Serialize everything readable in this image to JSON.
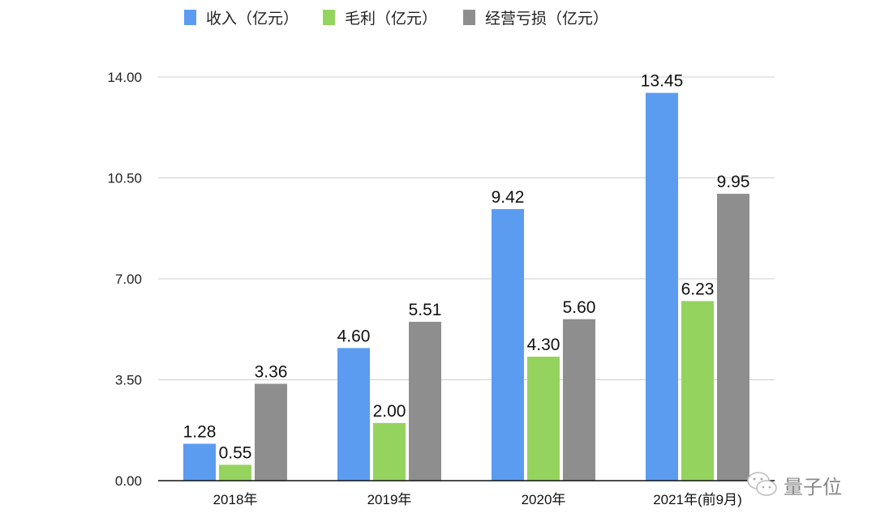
{
  "chart_data": {
    "type": "bar",
    "categories": [
      "2018年",
      "2019年",
      "2020年",
      "2021年(前9月)"
    ],
    "series": [
      {
        "name": "收入（亿元）",
        "color": "#5b9cf0",
        "values": [
          1.28,
          4.6,
          9.42,
          13.45
        ]
      },
      {
        "name": "毛利（亿元）",
        "color": "#95d35f",
        "values": [
          0.55,
          2.0,
          4.3,
          6.23
        ]
      },
      {
        "name": "经营亏损（亿元）",
        "color": "#8e8e8e",
        "values": [
          3.36,
          5.51,
          5.6,
          9.95
        ]
      }
    ],
    "data_labels": [
      [
        "1.28",
        "0.55",
        "3.36"
      ],
      [
        "4.60",
        "2.00",
        "5.51"
      ],
      [
        "9.42",
        "4.30",
        "5.60"
      ],
      [
        "13.45",
        "6.23",
        "9.95"
      ]
    ],
    "yticks": [
      "0.00",
      "3.50",
      "7.00",
      "10.50",
      "14.00"
    ],
    "ytick_values": [
      0,
      3.5,
      7,
      10.5,
      14
    ],
    "ylim": [
      0,
      14
    ],
    "grid": true,
    "legend_position": "top"
  },
  "watermark": {
    "text": "量子位",
    "icon": "wechat-icon"
  }
}
